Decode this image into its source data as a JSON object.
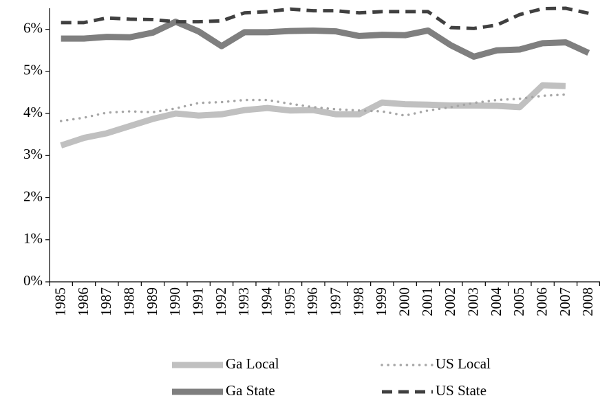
{
  "chart_data": {
    "type": "line",
    "categories": [
      "1985",
      "1986",
      "1987",
      "1988",
      "1989",
      "1990",
      "1991",
      "1992",
      "1993",
      "1994",
      "1995",
      "1996",
      "1997",
      "1998",
      "1999",
      "2000",
      "2001",
      "2002",
      "2003",
      "2004",
      "2005",
      "2006",
      "2007",
      "2008"
    ],
    "series": [
      {
        "name": "Ga Local",
        "color": "#c0c0c0",
        "style": "solid",
        "values": [
          3.24,
          3.42,
          3.53,
          3.7,
          3.87,
          4.0,
          3.95,
          3.98,
          4.08,
          4.13,
          4.07,
          4.08,
          3.98,
          3.98,
          4.26,
          4.22,
          4.21,
          4.19,
          4.19,
          4.18,
          4.15,
          4.67,
          4.65,
          null
        ]
      },
      {
        "name": "US Local",
        "color": "#a6a6a6",
        "style": "dotted",
        "values": [
          3.82,
          3.9,
          4.02,
          4.05,
          4.03,
          4.12,
          4.25,
          4.27,
          4.32,
          4.32,
          4.23,
          4.15,
          4.1,
          4.07,
          4.05,
          3.95,
          4.07,
          4.15,
          4.25,
          4.32,
          4.35,
          4.42,
          4.45,
          null
        ]
      },
      {
        "name": "Ga State",
        "color": "#7f7f7f",
        "style": "solid",
        "values": [
          5.78,
          5.78,
          5.82,
          5.81,
          5.92,
          6.18,
          5.95,
          5.6,
          5.93,
          5.93,
          5.96,
          5.97,
          5.95,
          5.84,
          5.87,
          5.86,
          5.97,
          5.62,
          5.35,
          5.5,
          5.52,
          5.67,
          5.69,
          5.44
        ]
      },
      {
        "name": "US State",
        "color": "#404040",
        "style": "dashed",
        "values": [
          6.16,
          6.16,
          6.27,
          6.24,
          6.23,
          6.18,
          6.18,
          6.2,
          6.39,
          6.42,
          6.48,
          6.44,
          6.44,
          6.39,
          6.42,
          6.42,
          6.42,
          6.04,
          6.02,
          6.1,
          6.35,
          6.49,
          6.5,
          6.38
        ]
      }
    ],
    "ylim": [
      0,
      6.5
    ],
    "yticks": [
      {
        "value": 0,
        "label": "0%"
      },
      {
        "value": 1,
        "label": "1%"
      },
      {
        "value": 2,
        "label": "2%"
      },
      {
        "value": 3,
        "label": "3%"
      },
      {
        "value": 4,
        "label": "4%"
      },
      {
        "value": 5,
        "label": "5%"
      },
      {
        "value": 6,
        "label": "6%"
      }
    ],
    "grid": false,
    "legend": "bottom"
  }
}
